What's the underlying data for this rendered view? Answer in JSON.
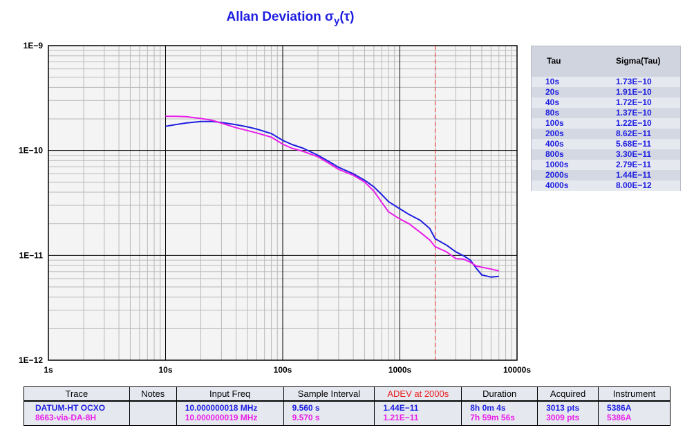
{
  "title_main": "Allan Deviation σ",
  "title_sub": "y",
  "title_tail": "(τ)",
  "chart_data": {
    "type": "line",
    "title": "Allan Deviation σy(τ)",
    "xlabel": "",
    "ylabel": "",
    "xscale": "log",
    "yscale": "log",
    "xlim": [
      1,
      10000
    ],
    "ylim": [
      1e-12,
      1e-09
    ],
    "x_tick_labels": [
      "1s",
      "10s",
      "100s",
      "1000s",
      "10000s"
    ],
    "y_tick_labels": [
      "1E−12",
      "1E−11",
      "1E−10",
      "1E−9"
    ],
    "grid": true,
    "marker_line": {
      "x": 2000,
      "color": "#e81e1e",
      "style": "dashed"
    },
    "series": [
      {
        "name": "DATUM-HT OCXO",
        "color": "#1e1ee0",
        "x": [
          10,
          12,
          15,
          20,
          25,
          30,
          40,
          50,
          60,
          80,
          100,
          120,
          150,
          200,
          250,
          300,
          400,
          500,
          600,
          700,
          800,
          1000,
          1200,
          1500,
          1800,
          2000,
          2500,
          3000,
          3500,
          4000,
          4500,
          5000,
          6000,
          7000
        ],
        "y": [
          1.7e-10,
          1.76e-10,
          1.83e-10,
          1.89e-10,
          1.89e-10,
          1.85e-10,
          1.76e-10,
          1.68e-10,
          1.6e-10,
          1.45e-10,
          1.25e-10,
          1.14e-10,
          1.05e-10,
          9e-11,
          7.8e-11,
          6.9e-11,
          6e-11,
          5.2e-11,
          4.5e-11,
          3.8e-11,
          3.25e-11,
          2.78e-11,
          2.45e-11,
          2.15e-11,
          1.8e-11,
          1.44e-11,
          1.25e-11,
          1.08e-11,
          9.9e-12,
          9e-12,
          7.5e-12,
          6.5e-12,
          6.2e-12,
          6.3e-12
        ]
      },
      {
        "name": "8663-via-DA-8H",
        "color": "#e81ee8",
        "x": [
          10,
          12,
          15,
          20,
          25,
          30,
          40,
          50,
          60,
          80,
          100,
          120,
          150,
          200,
          250,
          300,
          400,
          500,
          600,
          700,
          800,
          1000,
          1200,
          1500,
          1800,
          2000,
          2500,
          3000,
          3500,
          4000,
          4500,
          5000,
          6000,
          7000
        ],
        "y": [
          2.12e-10,
          2.12e-10,
          2.1e-10,
          2.02e-10,
          1.94e-10,
          1.82e-10,
          1.65e-10,
          1.55e-10,
          1.47e-10,
          1.34e-10,
          1.15e-10,
          1.05e-10,
          9.8e-11,
          8.7e-11,
          7.5e-11,
          6.6e-11,
          5.8e-11,
          5e-11,
          4.1e-11,
          3.2e-11,
          2.6e-11,
          2.22e-11,
          2e-11,
          1.65e-11,
          1.4e-11,
          1.21e-11,
          1.08e-11,
          9.3e-12,
          9.2e-12,
          8.6e-12,
          7.9e-12,
          7.7e-12,
          7.4e-12,
          7.1e-12
        ]
      }
    ]
  },
  "sigma_table": {
    "headers": [
      "Tau",
      "Sigma(Tau)"
    ],
    "rows": [
      {
        "tau": "10s",
        "sigma": "1.73E−10"
      },
      {
        "tau": "20s",
        "sigma": "1.91E−10"
      },
      {
        "tau": "40s",
        "sigma": "1.72E−10"
      },
      {
        "tau": "80s",
        "sigma": "1.37E−10"
      },
      {
        "tau": "100s",
        "sigma": "1.22E−10"
      },
      {
        "tau": "200s",
        "sigma": "8.62E−11"
      },
      {
        "tau": "400s",
        "sigma": "5.68E−11"
      },
      {
        "tau": "800s",
        "sigma": "3.30E−11"
      },
      {
        "tau": "1000s",
        "sigma": "2.79E−11"
      },
      {
        "tau": "2000s",
        "sigma": "1.44E−11"
      },
      {
        "tau": "4000s",
        "sigma": "8.00E−12"
      }
    ]
  },
  "legend_table": {
    "headers": {
      "trace": "Trace",
      "notes": "Notes",
      "input_freq": "Input Freq",
      "sample_interval": "Sample Interval",
      "adev": "ADEV at 2000s",
      "duration": "Duration",
      "acquired": "Acquired",
      "instrument": "Instrument"
    },
    "rows": [
      {
        "trace": "DATUM-HT OCXO",
        "notes": "",
        "input_freq": "10.000000018 MHz",
        "sample_interval": "9.560 s",
        "adev": "1.44E−11",
        "duration": "8h 0m 4s",
        "acquired": "3013 pts",
        "instrument": "5386A"
      },
      {
        "trace": "8663-via-DA-8H",
        "notes": "",
        "input_freq": "10.000000019 MHz",
        "sample_interval": "9.570 s",
        "adev": "1.21E−11",
        "duration": "7h 59m 56s",
        "acquired": "3009 pts",
        "instrument": "5386A"
      }
    ]
  }
}
